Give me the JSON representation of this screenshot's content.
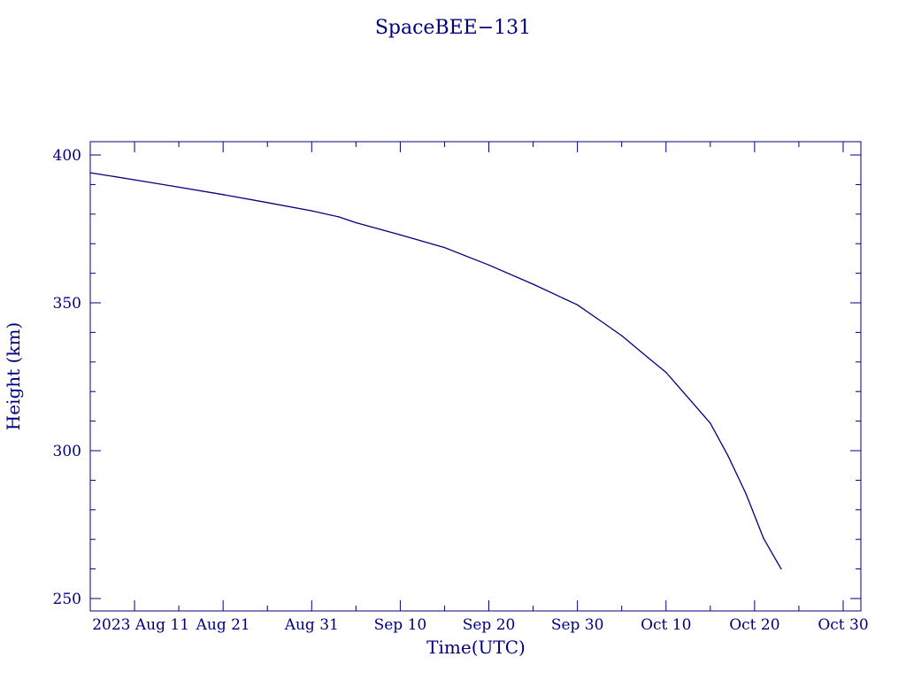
{
  "colors": {
    "ink": "#00007f",
    "background": "#ffffff"
  },
  "chart_data": {
    "type": "line",
    "title": "SpaceBEE−131",
    "xlabel": "Time(UTC)",
    "ylabel": "Height (km)",
    "ylim": [
      245.8,
      404.5
    ],
    "xlim": [
      "2023-08-06",
      "2023-11-01"
    ],
    "x_ticks": [
      {
        "date": "2023-08-11",
        "label": "2023 Aug 11"
      },
      {
        "date": "2023-08-21",
        "label": "Aug 21"
      },
      {
        "date": "2023-08-31",
        "label": "Aug 31"
      },
      {
        "date": "2023-09-10",
        "label": "Sep 10"
      },
      {
        "date": "2023-09-20",
        "label": "Sep 20"
      },
      {
        "date": "2023-09-30",
        "label": "Sep 30"
      },
      {
        "date": "2023-10-10",
        "label": "Oct 10"
      },
      {
        "date": "2023-10-20",
        "label": "Oct 20"
      },
      {
        "date": "2023-10-30",
        "label": "Oct 30"
      }
    ],
    "y_ticks": [
      {
        "value": 250,
        "label": "250"
      },
      {
        "value": 300,
        "label": "300"
      },
      {
        "value": 350,
        "label": "350"
      },
      {
        "value": 400,
        "label": "400"
      }
    ],
    "series": [
      {
        "points": [
          {
            "x": "2023-08-06",
            "y": 394.0
          },
          {
            "x": "2023-08-11",
            "y": 391.6
          },
          {
            "x": "2023-08-16",
            "y": 389.1
          },
          {
            "x": "2023-08-21",
            "y": 386.6
          },
          {
            "x": "2023-08-26",
            "y": 383.9
          },
          {
            "x": "2023-08-31",
            "y": 381.1
          },
          {
            "x": "2023-09-03",
            "y": 379.1
          },
          {
            "x": "2023-09-05",
            "y": 377.1
          },
          {
            "x": "2023-09-10",
            "y": 373.0
          },
          {
            "x": "2023-09-15",
            "y": 368.7
          },
          {
            "x": "2023-09-20",
            "y": 362.8
          },
          {
            "x": "2023-09-25",
            "y": 356.3
          },
          {
            "x": "2023-09-30",
            "y": 349.3
          },
          {
            "x": "2023-10-03",
            "y": 343.1
          },
          {
            "x": "2023-10-05",
            "y": 338.9
          },
          {
            "x": "2023-10-08",
            "y": 331.4
          },
          {
            "x": "2023-10-10",
            "y": 326.5
          },
          {
            "x": "2023-10-13",
            "y": 316.2
          },
          {
            "x": "2023-10-15",
            "y": 309.3
          },
          {
            "x": "2023-10-17",
            "y": 298.3
          },
          {
            "x": "2023-10-19",
            "y": 285.6
          },
          {
            "x": "2023-10-21",
            "y": 270.4
          },
          {
            "x": "2023-10-23",
            "y": 260.0
          }
        ]
      }
    ]
  }
}
